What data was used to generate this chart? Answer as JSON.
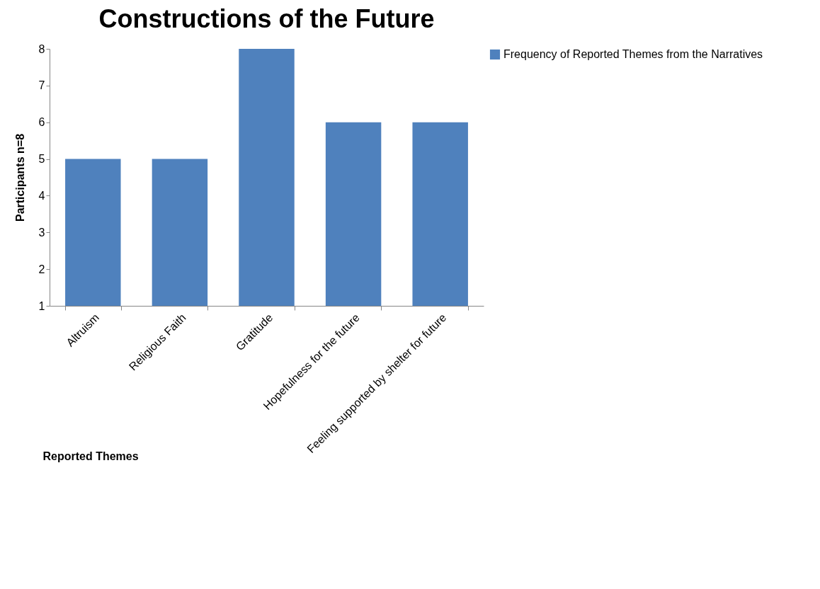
{
  "chart_data": {
    "type": "bar",
    "title": "Constructions of the Future",
    "xlabel": "Reported Themes",
    "ylabel": "Participants n=8",
    "categories": [
      "Altruism",
      "Religious Faith",
      "Gratitude",
      "Hopefulness for the future",
      "Feeling supported by shelter for future"
    ],
    "series": [
      {
        "name": "Frequency of Reported Themes from the Narratives",
        "color": "#4f81bd",
        "values": [
          5,
          5,
          8,
          6,
          6
        ]
      }
    ],
    "ylim": [
      1,
      8
    ],
    "yticks": [
      1,
      2,
      3,
      4,
      5,
      6,
      7,
      8
    ],
    "grid": false,
    "legend": "right"
  }
}
